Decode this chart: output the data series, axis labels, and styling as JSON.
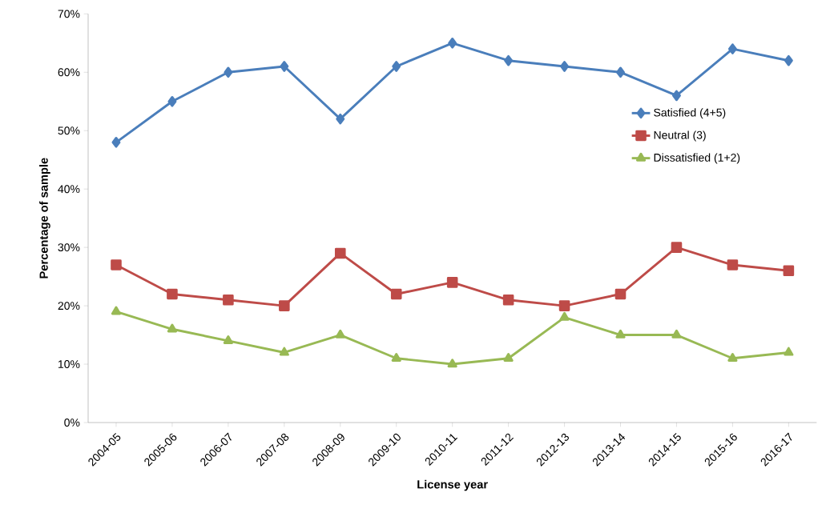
{
  "chart_data": {
    "type": "line",
    "xlabel": "License year",
    "ylabel": "Percentage of sample",
    "categories": [
      "2004-05",
      "2005-06",
      "2006-07",
      "2007-08",
      "2008-09",
      "2009-10",
      "2010-11",
      "2011-12",
      "2012-13",
      "2013-14",
      "2014-15",
      "2015-16",
      "2016-17"
    ],
    "series": [
      {
        "name": "Satisfied (4+5)",
        "color": "#4a7ebb",
        "marker": "diamond",
        "values": [
          48,
          55,
          60,
          61,
          52,
          61,
          65,
          62,
          61,
          60,
          56,
          64,
          62
        ]
      },
      {
        "name": "Neutral (3)",
        "color": "#be4b48",
        "marker": "square",
        "values": [
          27,
          22,
          21,
          20,
          29,
          22,
          24,
          21,
          20,
          22,
          30,
          27,
          26
        ]
      },
      {
        "name": "Dissatisfied (1+2)",
        "color": "#98b954",
        "marker": "triangle",
        "values": [
          19,
          16,
          14,
          12,
          15,
          11,
          10,
          11,
          18,
          15,
          15,
          11,
          12
        ]
      }
    ],
    "ylim": [
      0,
      70
    ],
    "yticks": [
      {
        "value": 0,
        "label": "0%"
      },
      {
        "value": 10,
        "label": "10%"
      },
      {
        "value": 20,
        "label": "20%"
      },
      {
        "value": 30,
        "label": "30%"
      },
      {
        "value": 40,
        "label": "40%"
      },
      {
        "value": 50,
        "label": "50%"
      },
      {
        "value": 60,
        "label": "60%"
      },
      {
        "value": 70,
        "label": "70%"
      }
    ],
    "grid": false,
    "legend": "right",
    "line_style": "solid"
  }
}
